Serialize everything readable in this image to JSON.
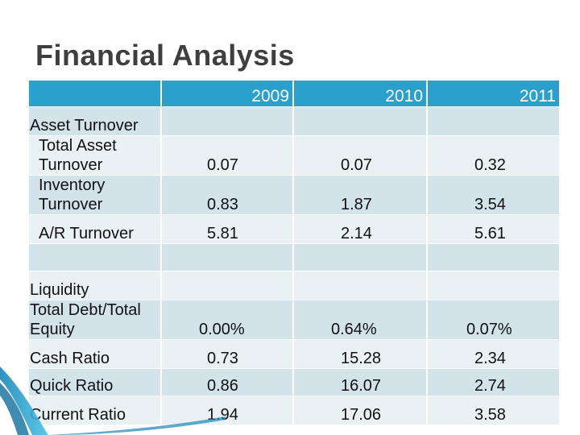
{
  "title": "Financial Analysis",
  "header": {
    "years": [
      "2009",
      "2010",
      "2011"
    ]
  },
  "rows": [
    {
      "label": "Asset Turnover",
      "values": [
        "",
        "",
        ""
      ]
    },
    {
      "label": "Total Asset Turnover",
      "values": [
        "0.07",
        "0.07",
        "0.32"
      ]
    },
    {
      "label": "Inventory Turnover",
      "values": [
        "0.83",
        "1.87",
        "3.54"
      ]
    },
    {
      "label": "A/R Turnover",
      "values": [
        "5.81",
        "2.14",
        "5.61"
      ]
    },
    {
      "label": "",
      "values": [
        "",
        "",
        ""
      ]
    },
    {
      "label": "Liquidity",
      "values": [
        "",
        "",
        ""
      ]
    },
    {
      "label": "Total Debt/Total Equity",
      "values": [
        "0.00%",
        "0.64%",
        "0.07%"
      ]
    },
    {
      "label": "Cash Ratio",
      "values": [
        "0.73",
        "15.28",
        "2.34"
      ]
    },
    {
      "label": "Quick Ratio",
      "values": [
        "0.86",
        "16.07",
        "2.74"
      ]
    },
    {
      "label": "Current Ratio",
      "values": [
        "1.94",
        "17.06",
        "3.58"
      ]
    }
  ],
  "colors": {
    "header": "#2aa0cc",
    "row_dark": "#d2e3ea",
    "row_light": "#e9f1f4",
    "title": "#3f3f3f"
  }
}
